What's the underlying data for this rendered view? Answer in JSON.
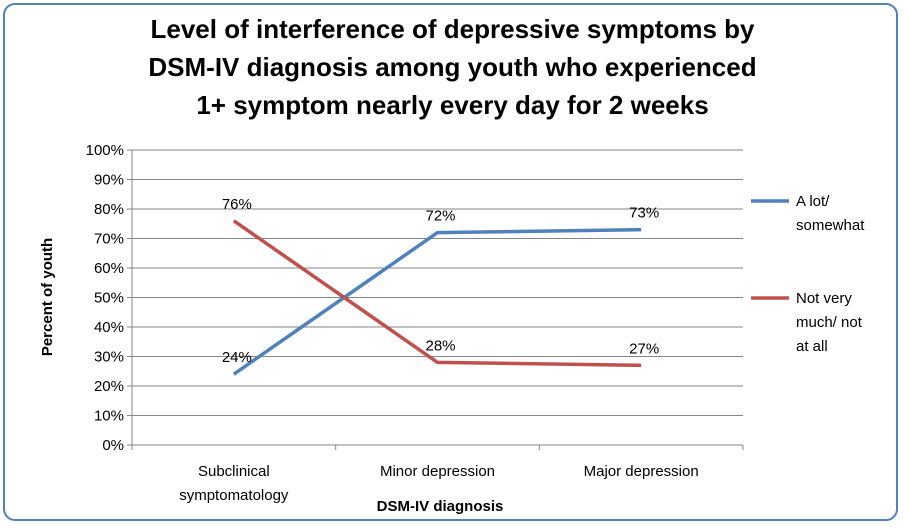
{
  "chart_data": {
    "type": "line",
    "title_lines": [
      "Level of interference of depressive symptoms by",
      "DSM-IV diagnosis among youth who experienced",
      "1+ symptom nearly every day for 2 weeks"
    ],
    "xlabel": "DSM-IV diagnosis",
    "ylabel": "Percent of youth",
    "categories": [
      [
        "Subclinical",
        "symptomatology"
      ],
      [
        "Minor depression"
      ],
      [
        "Major depression"
      ]
    ],
    "ylim": [
      0,
      100
    ],
    "yticks": [
      "0%",
      "10%",
      "20%",
      "30%",
      "40%",
      "50%",
      "60%",
      "70%",
      "80%",
      "90%",
      "100%"
    ],
    "grid": true,
    "legend_position": "right",
    "series": [
      {
        "name_lines": [
          "A lot/",
          "somewhat"
        ],
        "color": "#4f81bd",
        "values": [
          24,
          72,
          73
        ],
        "labels": [
          "24%",
          "72%",
          "73%"
        ]
      },
      {
        "name_lines": [
          "Not very",
          "much/ not",
          "at all"
        ],
        "color": "#c0504d",
        "values": [
          76,
          28,
          27
        ],
        "labels": [
          "76%",
          "28%",
          "27%"
        ]
      }
    ]
  }
}
